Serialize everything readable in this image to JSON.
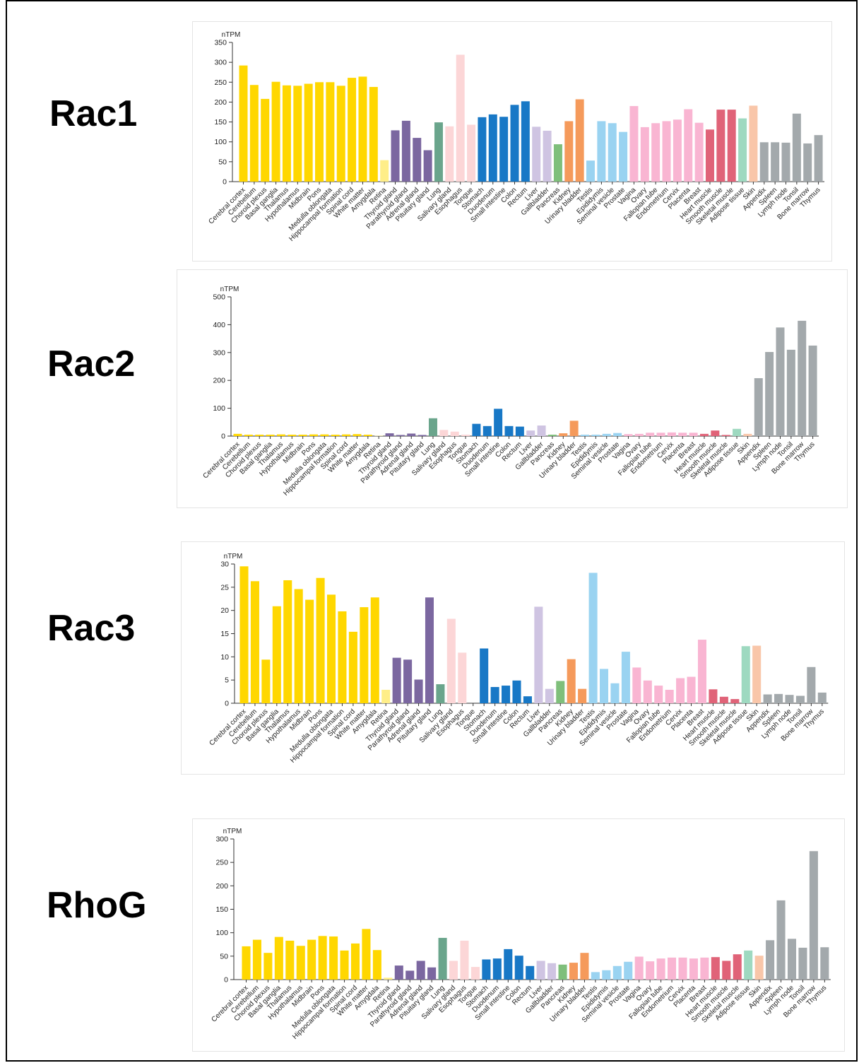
{
  "colors": {
    "brain": "#FFD700",
    "retina": "#FFEE88",
    "endocrine": "#7B67A0",
    "lung": "#6AA58C",
    "proximal_digestive": "#FCD6D7",
    "gi_tract": "#1878C6",
    "liver_gallbladder": "#CFC4E2",
    "pancreas": "#7FBF7B",
    "kidney_bladder": "#F59A5B",
    "male": "#9AD3F1",
    "female": "#F9B5D2",
    "muscle": "#E06378",
    "adipose": "#9ED9C0",
    "skin": "#F9C6A9",
    "lymphoid": "#A3A9AC"
  },
  "chart_data": [
    {
      "gene": "Rac1",
      "type": "bar",
      "ylabel": "nTPM",
      "ylim": [
        0,
        350
      ],
      "yticks": [
        0,
        50,
        100,
        150,
        200,
        250,
        300,
        350
      ],
      "categories": [
        "Cerebral cortex",
        "Cerebellum",
        "Choroid plexus",
        "Basal ganglia",
        "Thalamus",
        "Hypothalamus",
        "Midbrain",
        "Pons",
        "Medulla oblongata",
        "Hippocampal formation",
        "Spinal cord",
        "White matter",
        "Amygdala",
        "Retina",
        "Thyroid gland",
        "Parathyroid gland",
        "Adrenal gland",
        "Pituitary gland",
        "Lung",
        "Salivary gland",
        "Esophagus",
        "Tongue",
        "Stomach",
        "Duodenum",
        "Small intestine",
        "Colon",
        "Rectum",
        "Liver",
        "Gallbladder",
        "Pancreas",
        "Kidney",
        "Urinary bladder",
        "Testis",
        "Epididymis",
        "Seminal vesicle",
        "Prostate",
        "Vagina",
        "Ovary",
        "Fallopian tube",
        "Endometrium",
        "Cervix",
        "Placenta",
        "Breast",
        "Heart muscle",
        "Smooth muscle",
        "Skeletal muscle",
        "Adipose tissue",
        "Skin",
        "Appendix",
        "Spleen",
        "Lymph node",
        "Tonsil",
        "Bone marrow",
        "Thymus"
      ],
      "groups": [
        "brain",
        "brain",
        "brain",
        "brain",
        "brain",
        "brain",
        "brain",
        "brain",
        "brain",
        "brain",
        "brain",
        "brain",
        "brain",
        "retina",
        "endocrine",
        "endocrine",
        "endocrine",
        "endocrine",
        "lung",
        "proximal_digestive",
        "proximal_digestive",
        "proximal_digestive",
        "gi_tract",
        "gi_tract",
        "gi_tract",
        "gi_tract",
        "gi_tract",
        "liver_gallbladder",
        "liver_gallbladder",
        "pancreas",
        "kidney_bladder",
        "kidney_bladder",
        "male",
        "male",
        "male",
        "male",
        "female",
        "female",
        "female",
        "female",
        "female",
        "female",
        "female",
        "muscle",
        "muscle",
        "muscle",
        "adipose",
        "skin",
        "lymphoid",
        "lymphoid",
        "lymphoid",
        "lymphoid",
        "lymphoid",
        "lymphoid"
      ],
      "values": [
        292,
        243,
        208,
        251,
        242,
        241,
        246,
        250,
        250,
        241,
        261,
        264,
        238,
        54,
        129,
        153,
        110,
        79,
        149,
        139,
        319,
        143,
        162,
        169,
        163,
        193,
        202,
        138,
        128,
        94,
        152,
        207,
        53,
        152,
        147,
        125,
        190,
        137,
        147,
        152,
        156,
        182,
        148,
        131,
        181,
        181,
        159,
        191,
        99,
        99,
        98,
        171,
        96,
        117
      ]
    },
    {
      "gene": "Rac2",
      "type": "bar",
      "ylabel": "nTPM",
      "ylim": [
        0,
        500
      ],
      "yticks": [
        0,
        100,
        200,
        300,
        400,
        500
      ],
      "categories": [
        "Cerebral cortex",
        "Cerebellum",
        "Choroid plexus",
        "Basal ganglia",
        "Thalamus",
        "Hypothalamus",
        "Midbrain",
        "Pons",
        "Medulla oblongata",
        "Hippocampal formation",
        "Spinal cord",
        "White matter",
        "Amygdala",
        "Retina",
        "Thyroid gland",
        "Parathyroid gland",
        "Adrenal gland",
        "Pituitary gland",
        "Lung",
        "Salivary gland",
        "Esophagus",
        "Tongue",
        "Stomach",
        "Duodenum",
        "Small intestine",
        "Colon",
        "Rectum",
        "Liver",
        "Gallbladder",
        "Pancreas",
        "Kidney",
        "Urinary bladder",
        "Testis",
        "Epididymis",
        "Seminal vesicle",
        "Prostate",
        "Vagina",
        "Ovary",
        "Fallopian tube",
        "Endometrium",
        "Cervix",
        "Placenta",
        "Breast",
        "Heart muscle",
        "Smooth muscle",
        "Skeletal muscle",
        "Adipose tissue",
        "Skin",
        "Appendix",
        "Spleen",
        "Lymph node",
        "Tonsil",
        "Bone marrow",
        "Thymus"
      ],
      "groups": [
        "brain",
        "brain",
        "brain",
        "brain",
        "brain",
        "brain",
        "brain",
        "brain",
        "brain",
        "brain",
        "brain",
        "brain",
        "brain",
        "retina",
        "endocrine",
        "endocrine",
        "endocrine",
        "endocrine",
        "lung",
        "proximal_digestive",
        "proximal_digestive",
        "proximal_digestive",
        "gi_tract",
        "gi_tract",
        "gi_tract",
        "gi_tract",
        "gi_tract",
        "liver_gallbladder",
        "liver_gallbladder",
        "pancreas",
        "kidney_bladder",
        "kidney_bladder",
        "male",
        "male",
        "male",
        "male",
        "female",
        "female",
        "female",
        "female",
        "female",
        "female",
        "female",
        "muscle",
        "muscle",
        "muscle",
        "adipose",
        "skin",
        "lymphoid",
        "lymphoid",
        "lymphoid",
        "lymphoid",
        "lymphoid",
        "lymphoid"
      ],
      "values": [
        8,
        5,
        5,
        5,
        6,
        5,
        5,
        6,
        6,
        5,
        6,
        7,
        5,
        1,
        10,
        4,
        9,
        4,
        64,
        22,
        16,
        5,
        44,
        36,
        98,
        36,
        34,
        20,
        38,
        5,
        10,
        55,
        5,
        5,
        8,
        11,
        7,
        8,
        12,
        12,
        13,
        12,
        12,
        8,
        20,
        4,
        26,
        8,
        208,
        302,
        390,
        310,
        414,
        325
      ]
    },
    {
      "gene": "Rac3",
      "type": "bar",
      "ylabel": "nTPM",
      "ylim": [
        0,
        30
      ],
      "yticks": [
        0,
        5,
        10,
        15,
        20,
        25,
        30
      ],
      "categories": [
        "Cerebral cortex",
        "Cerebellum",
        "Choroid plexus",
        "Basal ganglia",
        "Thalamus",
        "Hypothalamus",
        "Midbrain",
        "Pons",
        "Medulla oblongata",
        "Hippocampal formation",
        "Spinal cord",
        "White matter",
        "Amygdala",
        "Retina",
        "Thyroid gland",
        "Parathyroid gland",
        "Adrenal gland",
        "Pituitary gland",
        "Lung",
        "Salivary gland",
        "Esophagus",
        "Tongue",
        "Stomach",
        "Duodenum",
        "Small intestine",
        "Colon",
        "Rectum",
        "Liver",
        "Gallbladder",
        "Pancreas",
        "Kidney",
        "Urinary bladder",
        "Testis",
        "Epididymis",
        "Seminal vesicle",
        "Prostate",
        "Vagina",
        "Ovary",
        "Fallopian tube",
        "Endometrium",
        "Cervix",
        "Placenta",
        "Breast",
        "Heart muscle",
        "Smooth muscle",
        "Skeletal muscle",
        "Adipose tissue",
        "Skin",
        "Appendix",
        "Spleen",
        "Lymph node",
        "Tonsil",
        "Bone marrow",
        "Thymus"
      ],
      "groups": [
        "brain",
        "brain",
        "brain",
        "brain",
        "brain",
        "brain",
        "brain",
        "brain",
        "brain",
        "brain",
        "brain",
        "brain",
        "brain",
        "retina",
        "endocrine",
        "endocrine",
        "endocrine",
        "endocrine",
        "lung",
        "proximal_digestive",
        "proximal_digestive",
        "proximal_digestive",
        "gi_tract",
        "gi_tract",
        "gi_tract",
        "gi_tract",
        "gi_tract",
        "liver_gallbladder",
        "liver_gallbladder",
        "pancreas",
        "kidney_bladder",
        "kidney_bladder",
        "male",
        "male",
        "male",
        "male",
        "female",
        "female",
        "female",
        "female",
        "female",
        "female",
        "female",
        "muscle",
        "muscle",
        "muscle",
        "adipose",
        "skin",
        "lymphoid",
        "lymphoid",
        "lymphoid",
        "lymphoid",
        "lymphoid",
        "lymphoid"
      ],
      "values": [
        29.5,
        26.3,
        9.4,
        20.9,
        26.5,
        24.6,
        22.3,
        27.0,
        23.4,
        19.8,
        15.4,
        20.7,
        22.8,
        2.9,
        9.8,
        9.4,
        5.1,
        22.8,
        4.1,
        18.2,
        10.9,
        0.0,
        11.8,
        3.5,
        3.8,
        4.9,
        1.5,
        20.8,
        3.1,
        4.8,
        9.5,
        3.1,
        28.1,
        7.4,
        4.3,
        11.1,
        7.7,
        4.9,
        3.8,
        2.9,
        5.4,
        5.7,
        13.7,
        3.0,
        1.4,
        0.9,
        12.3,
        12.4,
        1.9,
        2.0,
        1.8,
        1.6,
        7.8,
        2.3
      ]
    },
    {
      "gene": "RhoG",
      "type": "bar",
      "ylabel": "nTPM",
      "ylim": [
        0,
        300
      ],
      "yticks": [
        0,
        50,
        100,
        150,
        200,
        250,
        300
      ],
      "categories": [
        "Cerebral cortex",
        "Cerebellum",
        "Choroid plexus",
        "Basal ganglia",
        "Thalamus",
        "Hypothalamus",
        "Midbrain",
        "Pons",
        "Medulla oblongata",
        "Hippocampal formation",
        "Spinal cord",
        "White matter",
        "Amygdala",
        "Retina",
        "Thyroid gland",
        "Parathyroid gland",
        "Adrenal gland",
        "Pituitary gland",
        "Lung",
        "Salivary gland",
        "Esophagus",
        "Tongue",
        "Stomach",
        "Duodenum",
        "Small intestine",
        "Colon",
        "Rectum",
        "Liver",
        "Gallbladder",
        "Pancreas",
        "Kidney",
        "Urinary bladder",
        "Testis",
        "Epididymis",
        "Seminal vesicle",
        "Prostate",
        "Vagina",
        "Ovary",
        "Fallopian tube",
        "Endometrium",
        "Cervix",
        "Placenta",
        "Breast",
        "Heart muscle",
        "Smooth muscle",
        "Skeletal muscle",
        "Adipose tissue",
        "Skin",
        "Appendix",
        "Spleen",
        "Lymph node",
        "Tonsil",
        "Bone marrow",
        "Thymus"
      ],
      "groups": [
        "brain",
        "brain",
        "brain",
        "brain",
        "brain",
        "brain",
        "brain",
        "brain",
        "brain",
        "brain",
        "brain",
        "brain",
        "brain",
        "retina",
        "endocrine",
        "endocrine",
        "endocrine",
        "endocrine",
        "lung",
        "proximal_digestive",
        "proximal_digestive",
        "proximal_digestive",
        "gi_tract",
        "gi_tract",
        "gi_tract",
        "gi_tract",
        "gi_tract",
        "liver_gallbladder",
        "liver_gallbladder",
        "pancreas",
        "kidney_bladder",
        "kidney_bladder",
        "male",
        "male",
        "male",
        "male",
        "female",
        "female",
        "female",
        "female",
        "female",
        "female",
        "female",
        "muscle",
        "muscle",
        "muscle",
        "adipose",
        "skin",
        "lymphoid",
        "lymphoid",
        "lymphoid",
        "lymphoid",
        "lymphoid",
        "lymphoid"
      ],
      "values": [
        71,
        85,
        57,
        91,
        83,
        72,
        85,
        93,
        92,
        62,
        77,
        108,
        63,
        4,
        30,
        19,
        40,
        26,
        89,
        40,
        83,
        27,
        43,
        45,
        65,
        51,
        29,
        40,
        35,
        32,
        36,
        57,
        16,
        20,
        29,
        38,
        49,
        39,
        45,
        47,
        47,
        45,
        47,
        48,
        40,
        54,
        62,
        51,
        84,
        169,
        87,
        68,
        274,
        69
      ]
    }
  ]
}
